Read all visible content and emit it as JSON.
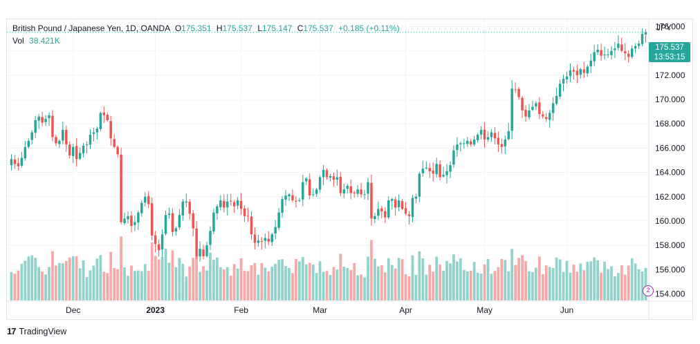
{
  "legend": {
    "symbol": "British Pound / Japanese Yen, 1D, OANDA",
    "o_label": "O",
    "o_value": "175.351",
    "h_label": "H",
    "h_value": "175.537",
    "l_label": "L",
    "l_value": "175.147",
    "c_label": "C",
    "c_value": "175.537",
    "change": "+0.185 (+0.11%)",
    "vol_label": "Vol",
    "vol_value": "38.421K"
  },
  "price_axis": {
    "unit": "JPY",
    "last_price": "175.537",
    "countdown": "13:53:15"
  },
  "branding": {
    "name": "TradingView"
  },
  "colors": {
    "up": "#26a69a",
    "down": "#ef5350",
    "up_vol": "#92d2cc",
    "down_vol": "#f7a9a7"
  },
  "chart_data": {
    "type": "candlestick",
    "symbol": "GBPJPY",
    "interval": "1D",
    "yaxis": {
      "unit": "JPY",
      "ylim": [
        153.4,
        176.6
      ],
      "ticks": [
        "154.000",
        "156.000",
        "158.000",
        "160.000",
        "162.000",
        "164.000",
        "166.000",
        "168.000",
        "170.000",
        "172.000",
        "174.000",
        "176.000"
      ]
    },
    "xaxis": {
      "ticks": [
        "Dec",
        "2023",
        "Feb",
        "Mar",
        "Apr",
        "May",
        "Jun"
      ]
    },
    "grid": true,
    "closes": [
      165.1,
      164.7,
      164.5,
      165.2,
      166.1,
      166.6,
      167.3,
      168.3,
      168.6,
      168.1,
      168.4,
      168.7,
      166.9,
      166.4,
      166.6,
      167.5,
      166.3,
      165.4,
      166.1,
      165.1,
      165.6,
      166.2,
      166.3,
      167.1,
      167.3,
      167.6,
      168.9,
      168.7,
      168.3,
      166.8,
      166.1,
      165.5,
      159.9,
      160.2,
      160.4,
      159.6,
      159.9,
      160.7,
      161.5,
      162.0,
      161.4,
      158.8,
      158.1,
      157.6,
      158.9,
      160.5,
      160.6,
      159.1,
      159.4,
      160.5,
      161.6,
      161.6,
      160.6,
      159.4,
      157.1,
      157.7,
      157.1,
      158.0,
      159.2,
      160.7,
      161.2,
      161.7,
      161.1,
      161.6,
      161.6,
      161.2,
      161.7,
      161.0,
      160.4,
      160.4,
      158.9,
      158.2,
      158.4,
      158.3,
      158.6,
      158.3,
      158.9,
      159.5,
      160.7,
      161.8,
      162.1,
      162.2,
      161.7,
      161.6,
      161.7,
      163.2,
      163.5,
      162.1,
      162.2,
      162.6,
      163.6,
      164.2,
      163.6,
      163.7,
      163.4,
      163.6,
      162.3,
      162.6,
      162.9,
      162.3,
      162.3,
      162.6,
      162.2,
      162.2,
      163.2,
      160.2,
      160.4,
      161.0,
      160.8,
      160.3,
      161.7,
      161.8,
      161.1,
      161.7,
      161.0,
      160.6,
      160.4,
      161.9,
      162.0,
      163.9,
      164.3,
      164.4,
      164.1,
      163.9,
      164.7,
      163.6,
      163.8,
      164.1,
      164.6,
      165.8,
      166.3,
      166.4,
      166.4,
      166.6,
      166.3,
      166.7,
      167.1,
      167.5,
      166.7,
      166.9,
      167.3,
      166.8,
      166.3,
      166.1,
      166.7,
      167.4,
      170.9,
      170.8,
      170.2,
      169.1,
      168.6,
      169.1,
      169.4,
      169.7,
      168.8,
      168.6,
      168.4,
      168.9,
      169.7,
      170.3,
      171.3,
      171.7,
      171.9,
      172.4,
      172.3,
      172.0,
      172.5,
      172.2,
      172.7,
      173.2,
      173.9,
      174.1,
      173.6,
      173.7,
      173.7,
      174.0,
      174.2,
      174.6,
      174.0,
      173.8,
      173.5,
      174.2,
      174.4,
      174.6,
      175.4,
      175.537
    ],
    "volume_range": [
      0,
      20000
    ]
  }
}
